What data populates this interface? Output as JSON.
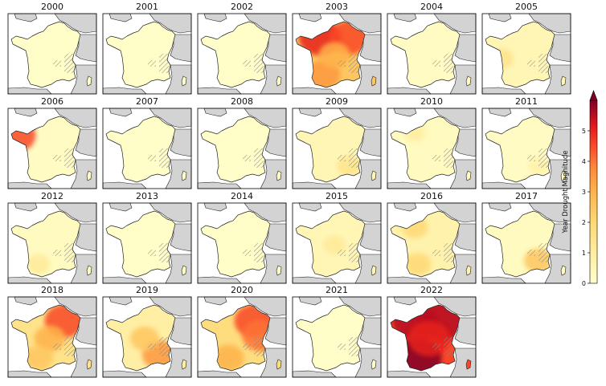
{
  "chart_data": {
    "type": "heatmap",
    "title": "",
    "panels": [
      {
        "year": "2000",
        "mean_magnitude": 0.1,
        "hotspots": []
      },
      {
        "year": "2001",
        "mean_magnitude": 0.1,
        "hotspots": []
      },
      {
        "year": "2002",
        "mean_magnitude": 0.1,
        "hotspots": []
      },
      {
        "year": "2003",
        "mean_magnitude": 2.5,
        "hotspots": [
          {
            "region": "north-west",
            "value": 5.0
          },
          {
            "region": "north-east",
            "value": 4.5
          },
          {
            "region": "south-west",
            "value": 3.5
          },
          {
            "region": "center",
            "value": 3.0
          }
        ]
      },
      {
        "year": "2004",
        "mean_magnitude": 0.2,
        "hotspots": []
      },
      {
        "year": "2005",
        "mean_magnitude": 0.5,
        "hotspots": [
          {
            "region": "west-coast",
            "value": 1.5
          }
        ]
      },
      {
        "year": "2006",
        "mean_magnitude": 0.2,
        "hotspots": [
          {
            "region": "brittany",
            "value": 4.5
          }
        ]
      },
      {
        "year": "2007",
        "mean_magnitude": 0.1,
        "hotspots": []
      },
      {
        "year": "2008",
        "mean_magnitude": 0.1,
        "hotspots": []
      },
      {
        "year": "2009",
        "mean_magnitude": 0.5,
        "hotspots": [
          {
            "region": "south-east",
            "value": 1.5
          }
        ]
      },
      {
        "year": "2010",
        "mean_magnitude": 0.3,
        "hotspots": [
          {
            "region": "north-west",
            "value": 1.0
          }
        ]
      },
      {
        "year": "2011",
        "mean_magnitude": 0.2,
        "hotspots": [
          {
            "region": "south-east",
            "value": 0.8
          }
        ]
      },
      {
        "year": "2012",
        "mean_magnitude": 0.3,
        "hotspots": [
          {
            "region": "south-west",
            "value": 1.2
          }
        ]
      },
      {
        "year": "2013",
        "mean_magnitude": 0.1,
        "hotspots": []
      },
      {
        "year": "2014",
        "mean_magnitude": 0.1,
        "hotspots": []
      },
      {
        "year": "2015",
        "mean_magnitude": 0.5,
        "hotspots": [
          {
            "region": "center",
            "value": 1.2
          }
        ]
      },
      {
        "year": "2016",
        "mean_magnitude": 0.7,
        "hotspots": [
          {
            "region": "north-west",
            "value": 2.0
          },
          {
            "region": "south-west",
            "value": 2.0
          }
        ]
      },
      {
        "year": "2017",
        "mean_magnitude": 0.3,
        "hotspots": [
          {
            "region": "south-east",
            "value": 2.5
          }
        ]
      },
      {
        "year": "2018",
        "mean_magnitude": 1.5,
        "hotspots": [
          {
            "region": "north-east",
            "value": 4.5
          },
          {
            "region": "center",
            "value": 3.0
          },
          {
            "region": "south-west",
            "value": 2.5
          }
        ]
      },
      {
        "year": "2019",
        "mean_magnitude": 0.9,
        "hotspots": [
          {
            "region": "south-east",
            "value": 3.5
          },
          {
            "region": "center",
            "value": 2.5
          }
        ]
      },
      {
        "year": "2020",
        "mean_magnitude": 1.8,
        "hotspots": [
          {
            "region": "north-east",
            "value": 4.5
          },
          {
            "region": "east",
            "value": 4.0
          },
          {
            "region": "south-west",
            "value": 3.0
          }
        ]
      },
      {
        "year": "2021",
        "mean_magnitude": 0.1,
        "hotspots": []
      },
      {
        "year": "2022",
        "mean_magnitude": 4.5,
        "hotspots": [
          {
            "region": "south-west",
            "value": 6.0
          },
          {
            "region": "north-west",
            "value": 5.5
          },
          {
            "region": "north-east",
            "value": 5.5
          },
          {
            "region": "center",
            "value": 5.0
          }
        ]
      }
    ],
    "colorbar": {
      "label": "Year Drought Magnitude",
      "min": 0,
      "max": 6,
      "ticks": [
        "0",
        "1",
        "2",
        "3",
        "4",
        "5"
      ],
      "extend": "max",
      "colormap": "YlOrRd"
    },
    "grid": false
  },
  "colors": {
    "land_other": "#d3d3d3",
    "sea": "#ffffff",
    "border": "#222222",
    "hatch": "#888888"
  }
}
